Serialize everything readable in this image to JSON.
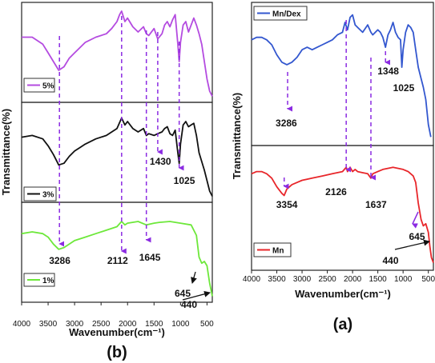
{
  "figure_labels": {
    "left": "(b)",
    "right": "(a)"
  },
  "colors": {
    "violet": "#b44be0",
    "black": "#111111",
    "green": "#6de83a",
    "blue": "#3357cf",
    "red": "#e8262a",
    "arrow": "#8b2be2"
  },
  "chart_data": [
    {
      "type": "line",
      "panel": "b",
      "xlabel": "Wavenumber(cm⁻¹)",
      "ylabel": "Transmittance(%)",
      "xlim": [
        4000,
        400
      ],
      "x_ticks": [
        "4000",
        "3500",
        "3000",
        "2500",
        "2000",
        "1500",
        "1000",
        "500"
      ],
      "series": [
        {
          "name": "5%",
          "color": "#b44be0",
          "x": [
            4000,
            3800,
            3600,
            3500,
            3400,
            3300,
            3200,
            3100,
            3000,
            2900,
            2800,
            2600,
            2400,
            2300,
            2200,
            2150,
            2112,
            2050,
            2000,
            1900,
            1800,
            1700,
            1645,
            1600,
            1500,
            1430,
            1350,
            1300,
            1250,
            1200,
            1150,
            1100,
            1050,
            1025,
            1000,
            950,
            900,
            850,
            800,
            750,
            700,
            650,
            600,
            550,
            500,
            450,
            400
          ],
          "y": [
            0.68,
            0.68,
            0.6,
            0.5,
            0.4,
            0.3,
            0.34,
            0.44,
            0.5,
            0.56,
            0.62,
            0.68,
            0.72,
            0.78,
            0.86,
            0.94,
            0.98,
            0.86,
            0.9,
            0.8,
            0.74,
            0.8,
            0.72,
            0.7,
            0.78,
            0.66,
            0.72,
            0.82,
            0.86,
            0.8,
            0.88,
            0.94,
            0.6,
            0.4,
            0.62,
            0.82,
            0.86,
            0.74,
            0.82,
            0.9,
            0.82,
            0.72,
            0.6,
            0.4,
            0.2,
            0.06,
            0.0
          ]
        },
        {
          "name": "3%",
          "color": "#111111",
          "x": [
            4000,
            3800,
            3600,
            3500,
            3400,
            3300,
            3200,
            3100,
            3000,
            2900,
            2800,
            2600,
            2400,
            2200,
            2112,
            2050,
            2000,
            1900,
            1800,
            1700,
            1645,
            1600,
            1500,
            1430,
            1350,
            1300,
            1250,
            1200,
            1150,
            1100,
            1050,
            1025,
            1000,
            950,
            900,
            850,
            800,
            750,
            700,
            650,
            600,
            550,
            500,
            450,
            400
          ],
          "y": [
            0.68,
            0.7,
            0.66,
            0.58,
            0.48,
            0.36,
            0.38,
            0.46,
            0.52,
            0.56,
            0.6,
            0.66,
            0.7,
            0.78,
            0.9,
            0.82,
            0.86,
            0.78,
            0.74,
            0.78,
            0.7,
            0.72,
            0.7,
            0.72,
            0.74,
            0.78,
            0.8,
            0.72,
            0.7,
            0.76,
            0.5,
            0.38,
            0.6,
            0.82,
            0.86,
            0.8,
            0.82,
            0.84,
            0.7,
            0.5,
            0.4,
            0.3,
            0.18,
            0.06,
            0.0
          ]
        },
        {
          "name": "1%",
          "color": "#6de83a",
          "x": [
            4000,
            3800,
            3600,
            3500,
            3400,
            3300,
            3200,
            3100,
            3000,
            2800,
            2600,
            2400,
            2200,
            2112,
            2050,
            2000,
            1800,
            1645,
            1500,
            1400,
            1200,
            1000,
            800,
            700,
            650,
            600,
            550,
            500,
            450,
            400
          ],
          "y": [
            0.72,
            0.74,
            0.72,
            0.68,
            0.6,
            0.54,
            0.56,
            0.6,
            0.64,
            0.68,
            0.72,
            0.76,
            0.8,
            0.86,
            0.82,
            0.84,
            0.86,
            0.82,
            0.84,
            0.85,
            0.86,
            0.84,
            0.82,
            0.7,
            0.45,
            0.38,
            0.4,
            0.35,
            0.15,
            0.0
          ]
        }
      ],
      "annotations": [
        {
          "text": "3286",
          "x": 3286
        },
        {
          "text": "2112",
          "x": 2112
        },
        {
          "text": "1645",
          "x": 1645
        },
        {
          "text": "1430",
          "x": 1430
        },
        {
          "text": "1025",
          "x": 1025
        },
        {
          "text": "645",
          "x": 645
        },
        {
          "text": "440",
          "x": 440
        }
      ]
    },
    {
      "type": "line",
      "panel": "a",
      "xlabel": "Wavenumber(cm⁻¹)",
      "ylabel": "Transmittance(%)",
      "xlim": [
        4000,
        400
      ],
      "x_ticks": [
        "4000",
        "3500",
        "3000",
        "2500",
        "2000",
        "1500",
        "1000",
        "500"
      ],
      "series": [
        {
          "name": "Mn/Dex",
          "color": "#3357cf",
          "x": [
            4000,
            3900,
            3800,
            3700,
            3600,
            3500,
            3400,
            3300,
            3200,
            3100,
            3000,
            2900,
            2800,
            2700,
            2600,
            2500,
            2400,
            2300,
            2200,
            2150,
            2100,
            2050,
            2000,
            1950,
            1900,
            1800,
            1700,
            1637,
            1600,
            1500,
            1450,
            1400,
            1348,
            1300,
            1250,
            1200,
            1150,
            1100,
            1050,
            1025,
            1000,
            950,
            900,
            850,
            800,
            750,
            700,
            650,
            600,
            550,
            500,
            450
          ],
          "y": [
            0.78,
            0.8,
            0.8,
            0.78,
            0.74,
            0.66,
            0.6,
            0.58,
            0.6,
            0.64,
            0.7,
            0.72,
            0.7,
            0.72,
            0.74,
            0.76,
            0.78,
            0.82,
            0.84,
            0.92,
            0.86,
            0.96,
            0.98,
            0.9,
            0.88,
            0.84,
            0.9,
            0.84,
            0.82,
            0.86,
            0.84,
            0.8,
            0.72,
            0.82,
            0.86,
            0.92,
            0.84,
            0.8,
            0.78,
            0.56,
            0.7,
            0.84,
            0.9,
            0.88,
            0.84,
            0.7,
            0.56,
            0.48,
            0.4,
            0.3,
            0.1,
            0.0
          ]
        },
        {
          "name": "Mn",
          "color": "#e8262a",
          "x": [
            4000,
            3900,
            3800,
            3700,
            3600,
            3500,
            3400,
            3354,
            3300,
            3200,
            3100,
            3000,
            2800,
            2600,
            2400,
            2200,
            2126,
            2100,
            2050,
            2000,
            1950,
            1900,
            1800,
            1700,
            1637,
            1600,
            1500,
            1400,
            1200,
            1000,
            900,
            800,
            750,
            700,
            645,
            600,
            550,
            500,
            470,
            440,
            400
          ],
          "y": [
            0.82,
            0.84,
            0.84,
            0.82,
            0.78,
            0.7,
            0.64,
            0.62,
            0.68,
            0.72,
            0.74,
            0.76,
            0.78,
            0.8,
            0.82,
            0.84,
            0.88,
            0.84,
            0.88,
            0.84,
            0.86,
            0.84,
            0.83,
            0.82,
            0.78,
            0.82,
            0.84,
            0.86,
            0.88,
            0.86,
            0.84,
            0.8,
            0.74,
            0.55,
            0.4,
            0.34,
            0.36,
            0.28,
            0.15,
            0.05,
            0.0
          ]
        }
      ],
      "annotations": [
        {
          "text": "3286",
          "x": 3286
        },
        {
          "text": "1348",
          "x": 1348
        },
        {
          "text": "1025",
          "x": 1025
        },
        {
          "text": "3354",
          "x": 3354
        },
        {
          "text": "2126",
          "x": 2126
        },
        {
          "text": "1637",
          "x": 1637
        },
        {
          "text": "645",
          "x": 645
        },
        {
          "text": "440",
          "x": 440
        }
      ]
    }
  ]
}
